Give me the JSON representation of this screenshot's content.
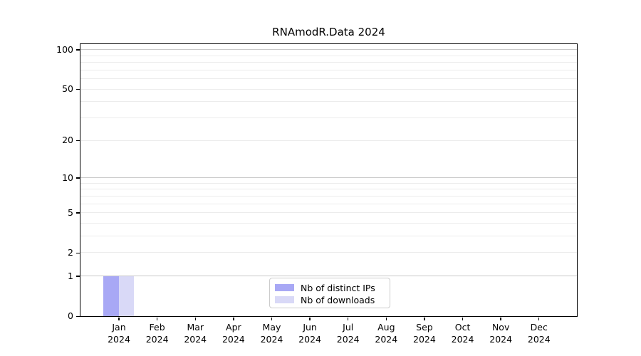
{
  "chart_data": {
    "type": "bar",
    "title": "RNAmodR.Data 2024",
    "categories": [
      "Jan",
      "Feb",
      "Mar",
      "Apr",
      "May",
      "Jun",
      "Jul",
      "Aug",
      "Sep",
      "Oct",
      "Nov",
      "Dec"
    ],
    "category_sublabel": "2024",
    "series": [
      {
        "name": "Nb of distinct IPs",
        "color": "#a8a8f5",
        "values": [
          1,
          0,
          0,
          0,
          0,
          0,
          0,
          0,
          0,
          0,
          0,
          0
        ]
      },
      {
        "name": "Nb of downloads",
        "color": "#d9d9f7",
        "values": [
          1,
          0,
          0,
          0,
          0,
          0,
          0,
          0,
          0,
          0,
          0,
          0
        ]
      }
    ],
    "xlabel": "",
    "ylabel": "",
    "yscale": "log1p",
    "ylim": [
      0,
      110
    ],
    "yticks": [
      0,
      1,
      2,
      5,
      10,
      20,
      50,
      100
    ],
    "y_major_gridlines": [
      1,
      10,
      100
    ],
    "y_minor_gridlines": [
      2,
      3,
      4,
      5,
      6,
      7,
      8,
      9,
      20,
      30,
      40,
      50,
      60,
      70,
      80,
      90
    ],
    "grid": true,
    "legend_position": "lower center"
  },
  "colors": {
    "background": "#ffffff",
    "spine": "#000000",
    "major_grid": "#c9c9c9",
    "minor_grid": "#ececec",
    "legend_border": "#cccccc",
    "bar_distinct_ips": "#a8a8f5",
    "bar_downloads": "#d9d9f7"
  }
}
